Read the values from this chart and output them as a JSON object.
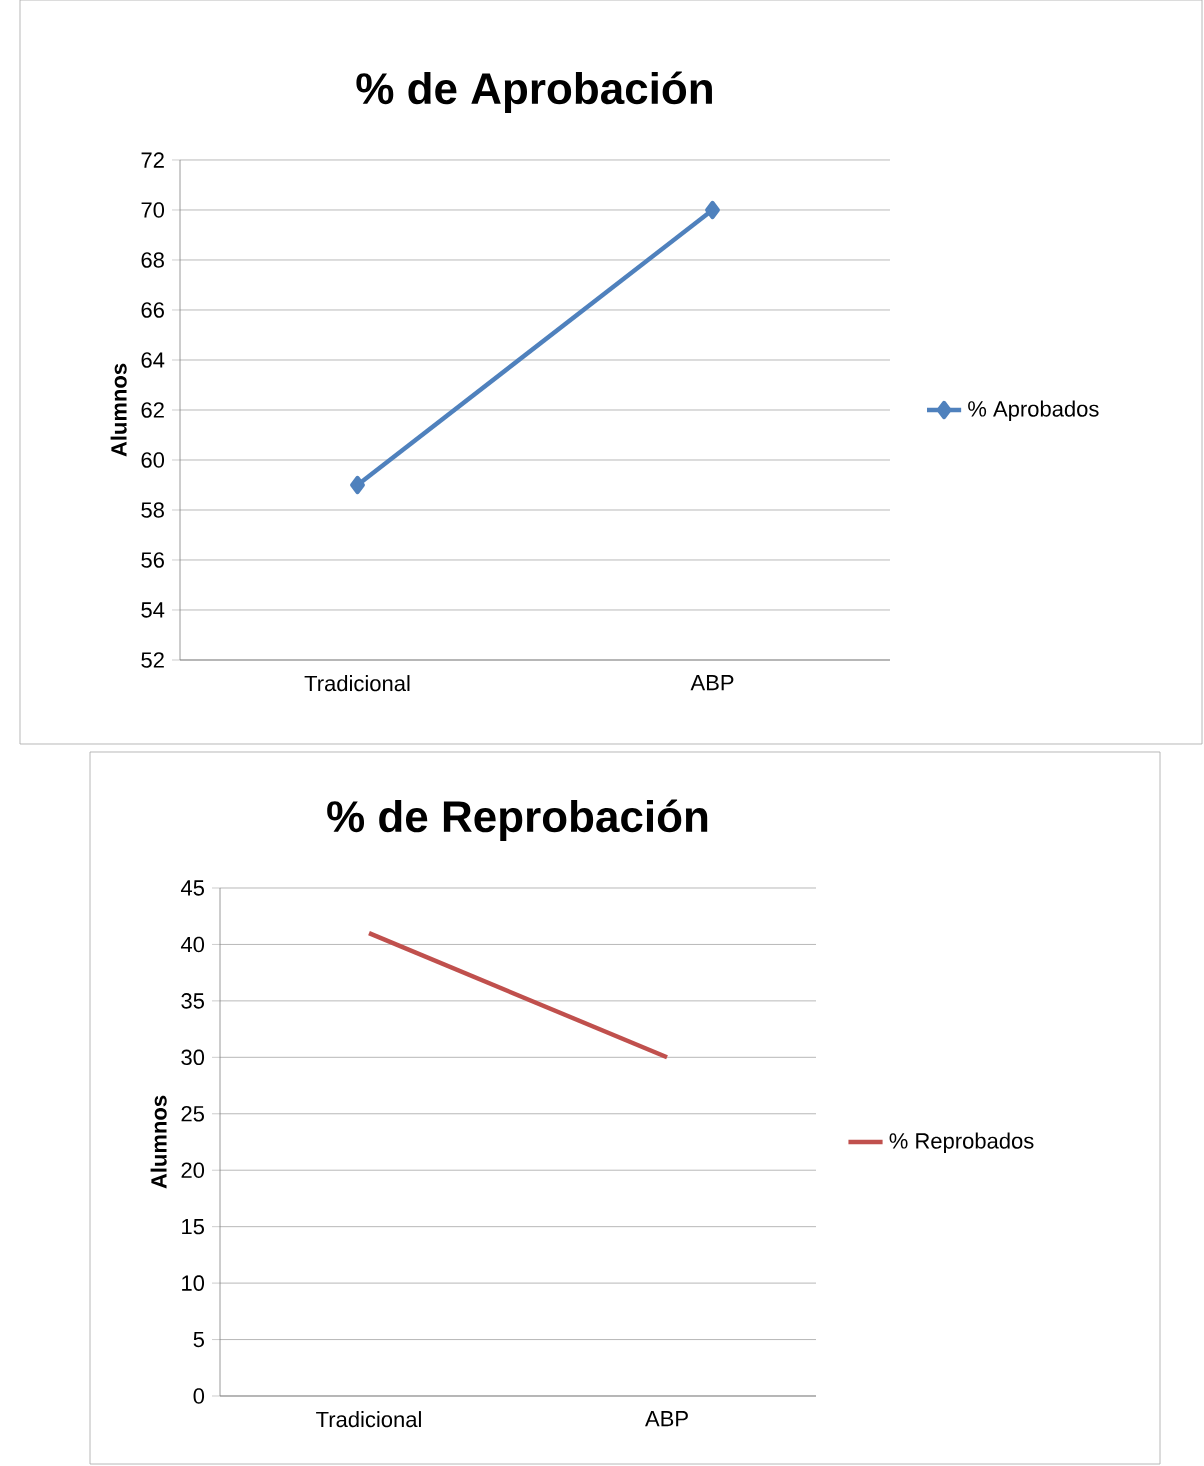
{
  "chart_data": [
    {
      "type": "line",
      "title": "% de Aprobación",
      "ylabel": "Alumnos",
      "categories": [
        "Tradicional",
        "ABP"
      ],
      "series": [
        {
          "name": "% Aprobados",
          "color": "#4f81bd",
          "values": [
            59,
            70
          ]
        }
      ],
      "ylim": [
        52,
        72
      ],
      "yticks": [
        52,
        54,
        56,
        58,
        60,
        62,
        64,
        66,
        68,
        70,
        72
      ],
      "grid": "y",
      "legend": "right",
      "marker": "diamond"
    },
    {
      "type": "line",
      "title": "% de Reprobación",
      "ylabel": "Alumnos",
      "categories": [
        "Tradicional",
        "ABP"
      ],
      "series": [
        {
          "name": "% Reprobados",
          "color": "#c0504d",
          "values": [
            41,
            30
          ]
        }
      ],
      "ylim": [
        0,
        45
      ],
      "yticks": [
        0,
        5,
        10,
        15,
        20,
        25,
        30,
        35,
        40,
        45
      ],
      "grid": "y",
      "legend": "right",
      "marker": "none"
    }
  ]
}
